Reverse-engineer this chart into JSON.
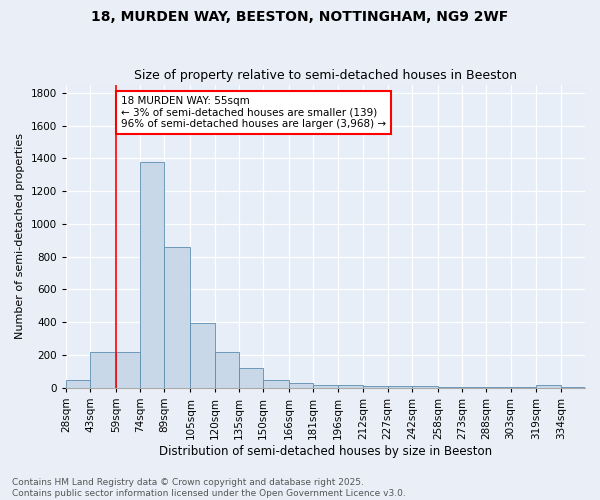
{
  "title_line1": "18, MURDEN WAY, BEESTON, NOTTINGHAM, NG9 2WF",
  "title_line2": "Size of property relative to semi-detached houses in Beeston",
  "xlabel": "Distribution of semi-detached houses by size in Beeston",
  "ylabel": "Number of semi-detached properties",
  "bin_labels": [
    "28sqm",
    "43sqm",
    "59sqm",
    "74sqm",
    "89sqm",
    "105sqm",
    "120sqm",
    "135sqm",
    "150sqm",
    "166sqm",
    "181sqm",
    "196sqm",
    "212sqm",
    "227sqm",
    "242sqm",
    "258sqm",
    "273sqm",
    "288sqm",
    "303sqm",
    "319sqm",
    "334sqm"
  ],
  "bin_edges": [
    28,
    43,
    59,
    74,
    89,
    105,
    120,
    135,
    150,
    166,
    181,
    196,
    212,
    227,
    242,
    258,
    273,
    288,
    303,
    319,
    334
  ],
  "bar_heights": [
    50,
    220,
    220,
    1380,
    860,
    395,
    220,
    120,
    45,
    30,
    20,
    15,
    10,
    10,
    10,
    5,
    5,
    5,
    5,
    20,
    5
  ],
  "bar_color": "#c8d8e8",
  "bar_edge_color": "#5b8db0",
  "vline_x": 59,
  "vline_color": "red",
  "annotation_text": "18 MURDEN WAY: 55sqm\n← 3% of semi-detached houses are smaller (139)\n96% of semi-detached houses are larger (3,968) →",
  "annotation_box_color": "white",
  "annotation_border_color": "red",
  "ylim": [
    0,
    1850
  ],
  "yticks": [
    0,
    200,
    400,
    600,
    800,
    1000,
    1200,
    1400,
    1600,
    1800
  ],
  "background_color": "#eaeff7",
  "plot_bg_color": "#e8eef7",
  "footer_text": "Contains HM Land Registry data © Crown copyright and database right 2025.\nContains public sector information licensed under the Open Government Licence v3.0.",
  "title_fontsize": 10,
  "subtitle_fontsize": 9,
  "axis_label_fontsize": 8.5,
  "tick_fontsize": 7.5,
  "annotation_fontsize": 7.5,
  "footer_fontsize": 6.5,
  "ylabel_fontsize": 8
}
